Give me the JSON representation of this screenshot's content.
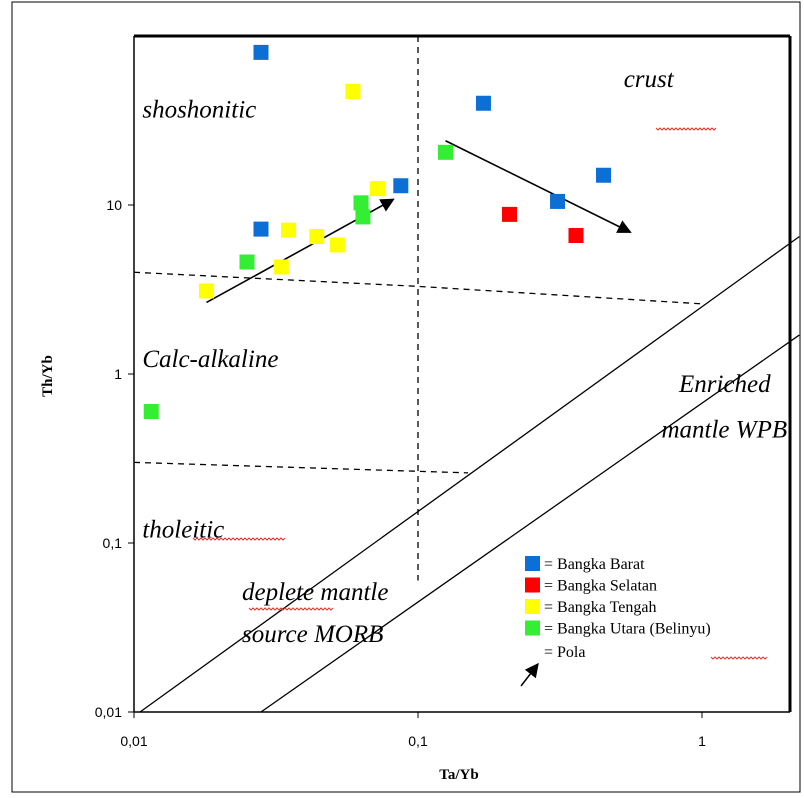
{
  "chart_data": {
    "type": "scatter",
    "title": "",
    "xlabel": "Ta/Yb",
    "ylabel": "Th/Yb",
    "x_scale": "log",
    "y_scale": "log",
    "xlim": [
      0.01,
      2.2
    ],
    "ylim": [
      0.01,
      100
    ],
    "x_ticks": [
      {
        "value": 0.01,
        "label": "0,01"
      },
      {
        "value": 0.1,
        "label": "0,1"
      },
      {
        "value": 1,
        "label": "1"
      }
    ],
    "y_ticks": [
      {
        "value": 0.01,
        "label": "0,01"
      },
      {
        "value": 0.1,
        "label": "0,1"
      },
      {
        "value": 1,
        "label": "1"
      },
      {
        "value": 10,
        "label": "10"
      }
    ],
    "grid": false,
    "legend_position": "bottom-right",
    "series": [
      {
        "name": "Bangka Barat",
        "color": "#0b6fd6",
        "points": [
          [
            0.028,
            80
          ],
          [
            0.028,
            7.2
          ],
          [
            0.087,
            13
          ],
          [
            0.17,
            40
          ],
          [
            0.31,
            10.5
          ],
          [
            0.45,
            15
          ]
        ]
      },
      {
        "name": "Bangka Selatan",
        "color": "#ff0000",
        "points": [
          [
            0.21,
            8.8
          ],
          [
            0.36,
            6.6
          ]
        ]
      },
      {
        "name": "Bangka Tengah",
        "color": "#ffff00",
        "points": [
          [
            0.018,
            3.1
          ],
          [
            0.033,
            4.3
          ],
          [
            0.035,
            7.1
          ],
          [
            0.044,
            6.5
          ],
          [
            0.052,
            5.8
          ],
          [
            0.059,
            47
          ],
          [
            0.072,
            12.5
          ]
        ]
      },
      {
        "name": "Bangka Utara (Belinyu)",
        "color": "#33ee33",
        "points": [
          [
            0.0115,
            0.6
          ],
          [
            0.025,
            4.6
          ],
          [
            0.063,
            10.3
          ],
          [
            0.064,
            8.5
          ],
          [
            0.125,
            20.5
          ]
        ]
      }
    ],
    "arrow_legend_label": "Pola",
    "trend_arrows": [
      {
        "from": [
          0.018,
          2.65
        ],
        "to": [
          0.082,
          10.8
        ]
      },
      {
        "from": [
          0.125,
          24
        ],
        "to": [
          0.56,
          6.9
        ]
      }
    ],
    "boundaries": [
      {
        "style": "dashed",
        "points": [
          [
            0.01,
            4
          ],
          [
            0.1,
            3.3
          ],
          [
            1,
            2.6
          ]
        ]
      },
      {
        "style": "dashed",
        "points": [
          [
            0.01,
            0.3
          ],
          [
            0.15,
            0.26
          ]
        ]
      },
      {
        "style": "dashed",
        "points": [
          [
            0.1,
            100
          ],
          [
            0.1,
            0.06
          ]
        ]
      },
      {
        "style": "solid",
        "points": [
          [
            0.0105,
            0.01
          ],
          [
            2.2,
            6.5
          ]
        ]
      },
      {
        "style": "solid",
        "points": [
          [
            0.028,
            0.01
          ],
          [
            2.2,
            1.7
          ]
        ]
      }
    ],
    "regions": [
      {
        "label": "shoshonitic",
        "at": [
          0.0107,
          33
        ]
      },
      {
        "label": "crust",
        "at": [
          0.53,
          50
        ]
      },
      {
        "label": "Calc-alkaline",
        "at": [
          0.0107,
          1.1
        ]
      },
      {
        "label": "Enriched",
        "at": [
          0.83,
          0.78
        ]
      },
      {
        "label": "mantle WPB",
        "at": [
          0.72,
          0.42
        ]
      },
      {
        "label": "tholeitic",
        "at": [
          0.0107,
          0.108
        ]
      },
      {
        "label": "deplete mantle",
        "at": [
          0.024,
          0.046
        ]
      },
      {
        "label": "source MORB",
        "at": [
          0.024,
          0.026
        ]
      }
    ]
  }
}
